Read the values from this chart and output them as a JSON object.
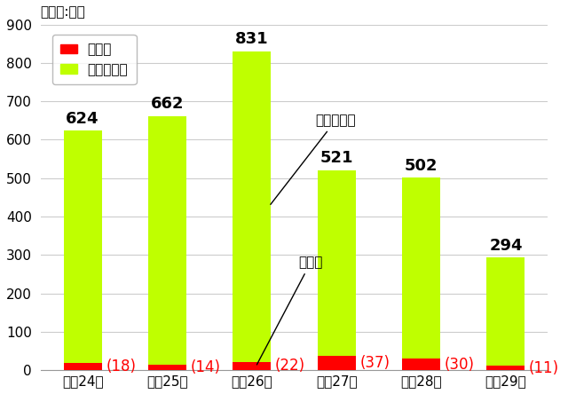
{
  "years": [
    "平成24年",
    "平成25年",
    "平成26年",
    "平成27年",
    "平成28年",
    "平成29年"
  ],
  "total": [
    624,
    662,
    831,
    521,
    502,
    294
  ],
  "senmon": [
    18,
    14,
    22,
    37,
    30,
    11
  ],
  "senmon_igai": [
    606,
    648,
    809,
    484,
    472,
    283
  ],
  "senmon_color": "#FF0000",
  "senmon_igai_color": "#BFFF00",
  "ylim": [
    0,
    900
  ],
  "yticks": [
    0,
    100,
    200,
    300,
    400,
    500,
    600,
    700,
    800,
    900
  ],
  "unit_label": "（単位:件）",
  "legend_senmon": "専門職",
  "legend_senmon_igai": "専門職以外",
  "annotation_igai": "専門職以外",
  "annotation_sen": "専門職",
  "bg_color": "#FFFFFF",
  "grid_color": "#CCCCCC",
  "label_fontsize": 11,
  "tick_fontsize": 11,
  "annot_fontsize": 13,
  "red_label_fontsize": 12
}
